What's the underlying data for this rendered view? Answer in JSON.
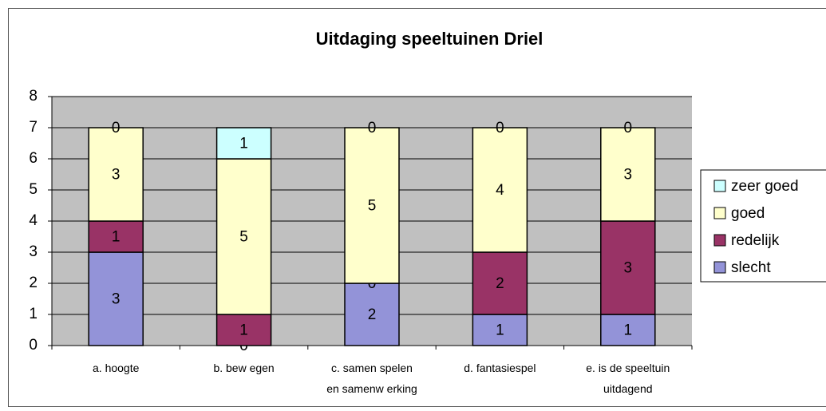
{
  "chart_data": {
    "type": "stacked_bar",
    "title": "Uitdaging speeltuinen Driel",
    "categories": [
      "a. hoogte",
      "b. bew egen",
      "c. samen spelen\nen samenw erking",
      "d. fantasiespel",
      "e. is de speeltuin\nuitdagend"
    ],
    "series": [
      {
        "name": "slecht",
        "color": "#9393d8",
        "values": [
          3,
          0,
          2,
          1,
          1
        ]
      },
      {
        "name": "redelijk",
        "color": "#993366",
        "values": [
          1,
          1,
          0,
          2,
          3
        ]
      },
      {
        "name": "goed",
        "color": "#ffffcc",
        "values": [
          3,
          5,
          5,
          4,
          3
        ]
      },
      {
        "name": "zeer goed",
        "color": "#ccffff",
        "values": [
          0,
          1,
          0,
          0,
          0
        ]
      }
    ],
    "ylim": [
      0,
      8
    ],
    "yticks": [
      0,
      1,
      2,
      3,
      4,
      5,
      6,
      7,
      8
    ],
    "grid": true,
    "legend": "right"
  }
}
